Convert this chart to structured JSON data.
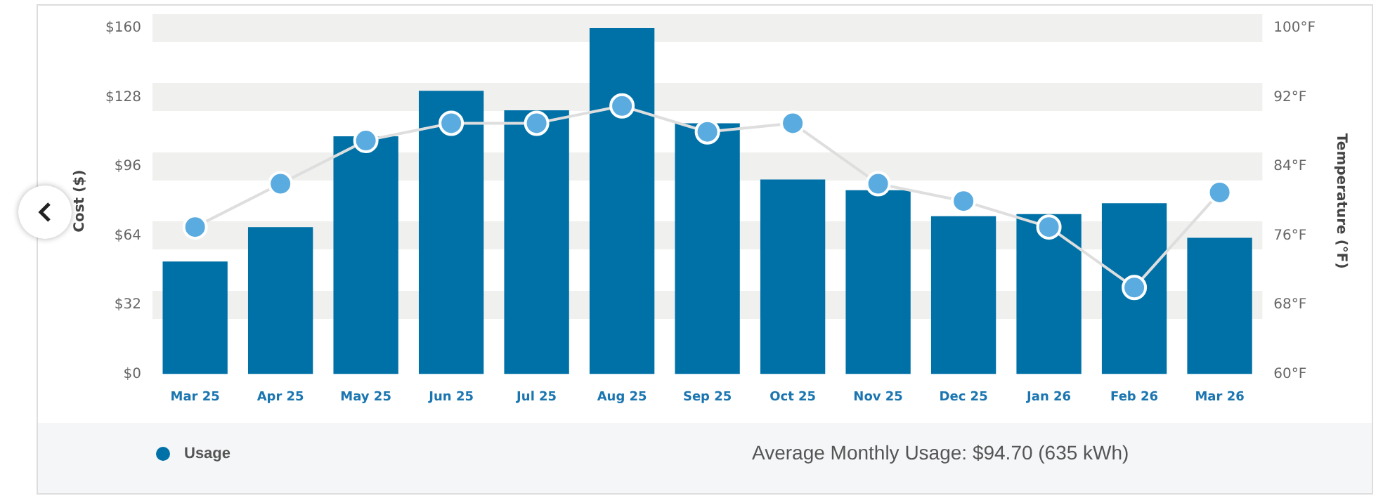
{
  "chart_data": {
    "type": "bar",
    "categories": [
      "Mar 25",
      "Apr 25",
      "May 25",
      "Jun 25",
      "Jul 25",
      "Aug 25",
      "Sep 25",
      "Oct 25",
      "Nov 25",
      "Dec 25",
      "Jan 26",
      "Feb 26",
      "Mar 26"
    ],
    "series": [
      {
        "name": "Usage",
        "color": "#0071a7",
        "values": [
          52,
          68,
          110,
          131,
          122,
          160,
          116,
          90,
          85,
          73,
          74,
          79,
          63
        ]
      },
      {
        "type": "line",
        "axis": "y2",
        "color": "#5aabe0",
        "values": [
          77,
          82,
          87,
          89,
          89,
          91,
          88,
          89,
          82,
          80,
          77,
          70,
          81
        ]
      }
    ],
    "ylabel": "Cost ($)",
    "y2label": "Temperature (°F)",
    "ylim": [
      0,
      160
    ],
    "yticks": [
      {
        "value": 0,
        "label": "$0"
      },
      {
        "value": 32,
        "label": "$32"
      },
      {
        "value": 64,
        "label": "$64"
      },
      {
        "value": 96,
        "label": "$96"
      },
      {
        "value": 128,
        "label": "$128"
      },
      {
        "value": 160,
        "label": "$160"
      }
    ],
    "y2lim": [
      60,
      100
    ],
    "y2ticks": [
      {
        "value": 60,
        "label": "60°F"
      },
      {
        "value": 68,
        "label": "68°F"
      },
      {
        "value": 76,
        "label": "76°F"
      },
      {
        "value": 84,
        "label": "84°F"
      },
      {
        "value": 92,
        "label": "92°F"
      },
      {
        "value": 100,
        "label": "100°F"
      }
    ],
    "grid": "y",
    "legend": "bottom left",
    "marker": "circle",
    "annotations": [
      "Average Monthly Usage: $94.70 (635 kWh)"
    ]
  }
}
